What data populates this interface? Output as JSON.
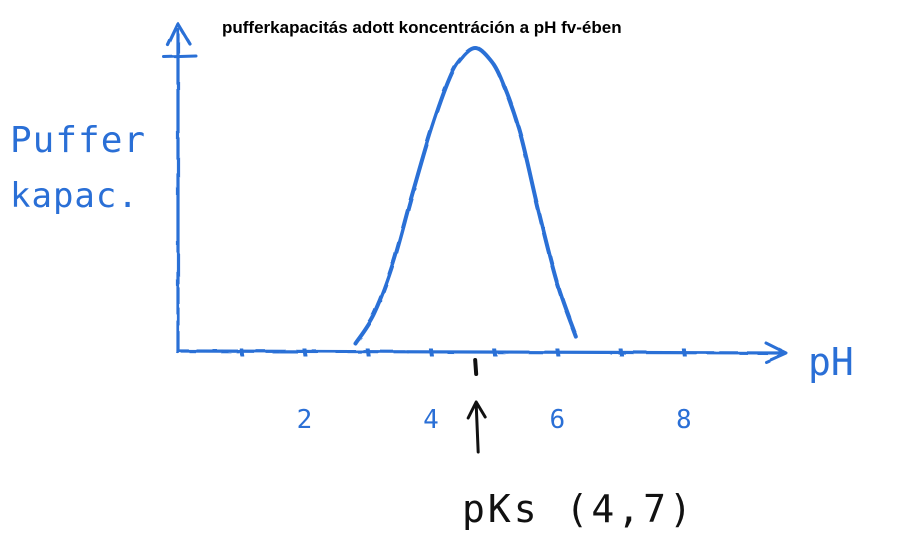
{
  "colors": {
    "ink_blue": "#2a6fd6",
    "ink_black": "#111111",
    "title_black": "#000000"
  },
  "chart_data": {
    "type": "line",
    "title": "pufferkapacitás adott koncentráción a pH fv-ében",
    "ylabel_lines": [
      "Puffer",
      "kapac."
    ],
    "xlabel": "pH",
    "x_tick_labels": [
      "2",
      "4",
      "6",
      "8"
    ],
    "x_tick_values": [
      2,
      4,
      6,
      8
    ],
    "xlim": [
      0,
      9.6
    ],
    "ylim": [
      0,
      1
    ],
    "grid": false,
    "series": [
      {
        "x": [
          2.8,
          3.1,
          3.4,
          3.7,
          4.0,
          4.3,
          4.5,
          4.7,
          4.9,
          5.1,
          5.4,
          5.7,
          6.0,
          6.3
        ],
        "values": [
          0.0,
          0.1,
          0.27,
          0.5,
          0.72,
          0.9,
          0.97,
          1.0,
          0.97,
          0.9,
          0.72,
          0.45,
          0.2,
          0.02
        ]
      }
    ],
    "annotation": {
      "x": 4.7,
      "text": "pKs (4,7)"
    }
  }
}
